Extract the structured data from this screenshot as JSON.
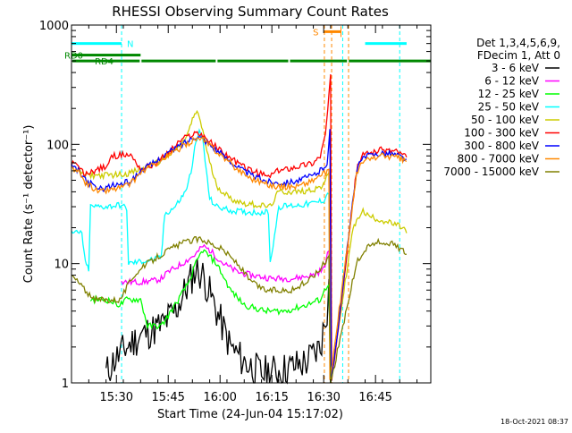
{
  "chart_data": {
    "type": "line",
    "title": "RHESSI Observing Summary Count Rates",
    "xlabel": "Start Time (24-Jun-04 15:17:02)",
    "ylabel": "Count Rate (s⁻¹ detector⁻¹)",
    "x_unit": "minutes after 15:17:02",
    "x_range": [
      0,
      104
    ],
    "x_ticks": [
      {
        "label": "15:30",
        "x": 13
      },
      {
        "label": "15:45",
        "x": 28
      },
      {
        "label": "16:00",
        "x": 43
      },
      {
        "label": "16:15",
        "x": 58
      },
      {
        "label": "16:30",
        "x": 73
      },
      {
        "label": "16:45",
        "x": 88
      }
    ],
    "y_scale": "log",
    "y_range": [
      1,
      1000
    ],
    "y_ticks": [
      {
        "label": "1",
        "value": 1
      },
      {
        "label": "10",
        "value": 10
      },
      {
        "label": "100",
        "value": 100
      },
      {
        "label": "1000",
        "value": 1000
      }
    ],
    "grid": false,
    "legend_position": "right",
    "legend_header": [
      "Det 1,3,4,5,6,9,",
      "FDecim 1, Att 0"
    ],
    "timestamp": "18-Oct-2021 08:37",
    "series": [
      {
        "name": "3 - 6 keV",
        "color": "#000000",
        "jitter": 0.35,
        "points": [
          [
            10,
            1.2
          ],
          [
            12,
            1.5
          ],
          [
            16,
            2
          ],
          [
            20,
            2.5
          ],
          [
            26,
            3
          ],
          [
            30,
            4
          ],
          [
            33,
            6
          ],
          [
            36,
            9
          ],
          [
            38,
            8
          ],
          [
            42,
            4
          ],
          [
            46,
            2
          ],
          [
            50,
            1.5
          ],
          [
            55,
            1.2
          ],
          [
            62,
            1.3
          ],
          [
            68,
            1.5
          ],
          [
            72,
            2
          ],
          [
            74,
            4
          ],
          [
            74.5,
            10
          ],
          [
            75,
            1
          ]
        ]
      },
      {
        "name": "6 - 12 keV",
        "color": "#ff00ff",
        "points": [
          [
            14.5,
            7
          ],
          [
            20,
            7
          ],
          [
            24,
            7.2
          ],
          [
            26,
            7.5
          ],
          [
            28,
            8.5
          ],
          [
            32,
            10
          ],
          [
            36,
            12
          ],
          [
            38,
            14
          ],
          [
            40,
            13
          ],
          [
            44,
            10
          ],
          [
            48,
            8.5
          ],
          [
            52,
            8
          ],
          [
            58,
            7.5
          ],
          [
            64,
            7.5
          ],
          [
            70,
            8
          ],
          [
            73,
            9
          ],
          [
            74.5,
            13
          ],
          [
            75,
            1
          ]
        ]
      },
      {
        "name": "12 - 25 keV",
        "color": "#00ff00",
        "points": [
          [
            5.5,
            5
          ],
          [
            10,
            5
          ],
          [
            14,
            4.5
          ],
          [
            16,
            5
          ],
          [
            20,
            5
          ],
          [
            22,
            3
          ],
          [
            26,
            3
          ],
          [
            30,
            4.5
          ],
          [
            34,
            7
          ],
          [
            36,
            10
          ],
          [
            38,
            13
          ],
          [
            42,
            10
          ],
          [
            46,
            6
          ],
          [
            50,
            4.5
          ],
          [
            56,
            4
          ],
          [
            62,
            4
          ],
          [
            68,
            4.5
          ],
          [
            72,
            5
          ],
          [
            74.5,
            7
          ],
          [
            75,
            1
          ]
        ]
      },
      {
        "name": "25 - 50 keV",
        "color": "#00ffff",
        "points": [
          [
            0,
            18
          ],
          [
            3,
            18
          ],
          [
            4,
            10
          ],
          [
            5,
            9
          ],
          [
            5.5,
            30
          ],
          [
            10,
            30
          ],
          [
            14,
            31
          ],
          [
            16,
            29
          ],
          [
            16.5,
            10
          ],
          [
            25,
            11
          ],
          [
            26,
            11.5
          ],
          [
            27,
            26
          ],
          [
            30,
            30
          ],
          [
            33,
            40
          ],
          [
            35,
            65
          ],
          [
            36,
            110
          ],
          [
            37,
            125
          ],
          [
            38,
            110
          ],
          [
            39,
            60
          ],
          [
            40,
            35
          ],
          [
            42,
            30
          ],
          [
            46,
            28
          ],
          [
            50,
            27
          ],
          [
            54,
            27
          ],
          [
            57,
            27
          ],
          [
            57.5,
            10
          ],
          [
            60,
            30
          ],
          [
            66,
            31
          ],
          [
            70,
            32
          ],
          [
            73,
            34
          ],
          [
            74.5,
            40
          ],
          [
            75,
            1
          ]
        ]
      },
      {
        "name": "50 - 100 keV",
        "color": "#cccc00",
        "points": [
          [
            0,
            62
          ],
          [
            2,
            60
          ],
          [
            4,
            55
          ],
          [
            6,
            55
          ],
          [
            10,
            55
          ],
          [
            14,
            56
          ],
          [
            16,
            57
          ],
          [
            17.5,
            58
          ],
          [
            20,
            62
          ],
          [
            24,
            68
          ],
          [
            28,
            80
          ],
          [
            32,
            100
          ],
          [
            34,
            130
          ],
          [
            35,
            160
          ],
          [
            36,
            185
          ],
          [
            37,
            170
          ],
          [
            38,
            130
          ],
          [
            40,
            70
          ],
          [
            42,
            45
          ],
          [
            46,
            35
          ],
          [
            50,
            32
          ],
          [
            54,
            31
          ],
          [
            57,
            30
          ],
          [
            57.5,
            30
          ],
          [
            60,
            40
          ],
          [
            66,
            40
          ],
          [
            70,
            42
          ],
          [
            73,
            45
          ],
          [
            74.5,
            60
          ],
          [
            75,
            1
          ],
          [
            81.5,
            20
          ],
          [
            82.5,
            22
          ],
          [
            84,
            28
          ],
          [
            86,
            25
          ],
          [
            88,
            24
          ],
          [
            92,
            22
          ],
          [
            96,
            20
          ],
          [
            97,
            18
          ]
        ]
      },
      {
        "name": "100 - 300 keV",
        "color": "#ff0000",
        "points": [
          [
            0,
            70
          ],
          [
            2,
            65
          ],
          [
            4,
            55
          ],
          [
            5,
            58
          ],
          [
            10,
            65
          ],
          [
            12,
            80
          ],
          [
            16,
            82
          ],
          [
            17.5,
            80
          ],
          [
            20,
            62
          ],
          [
            24,
            68
          ],
          [
            28,
            85
          ],
          [
            32,
            110
          ],
          [
            36,
            125
          ],
          [
            38,
            120
          ],
          [
            40,
            105
          ],
          [
            44,
            85
          ],
          [
            48,
            70
          ],
          [
            52,
            60
          ],
          [
            56,
            55
          ],
          [
            57,
            53
          ],
          [
            57.5,
            55
          ],
          [
            60,
            60
          ],
          [
            66,
            66
          ],
          [
            70,
            70
          ],
          [
            72,
            80
          ],
          [
            73.5,
            120
          ],
          [
            74.5,
            250
          ],
          [
            75,
            380
          ],
          [
            75.3,
            1
          ],
          [
            82.5,
            60
          ],
          [
            84,
            80
          ],
          [
            86,
            85
          ],
          [
            90,
            90
          ],
          [
            94,
            88
          ],
          [
            97,
            78
          ]
        ]
      },
      {
        "name": "300 - 800 keV",
        "color": "#0000ff",
        "points": [
          [
            0,
            65
          ],
          [
            2,
            60
          ],
          [
            4,
            50
          ],
          [
            8,
            42
          ],
          [
            12,
            45
          ],
          [
            16,
            48
          ],
          [
            17.5,
            50
          ],
          [
            20,
            60
          ],
          [
            24,
            70
          ],
          [
            28,
            85
          ],
          [
            32,
            100
          ],
          [
            36,
            118
          ],
          [
            38,
            112
          ],
          [
            40,
            100
          ],
          [
            44,
            80
          ],
          [
            48,
            65
          ],
          [
            52,
            55
          ],
          [
            56,
            50
          ],
          [
            58,
            48
          ],
          [
            62,
            48
          ],
          [
            66,
            50
          ],
          [
            70,
            55
          ],
          [
            72,
            60
          ],
          [
            74,
            70
          ],
          [
            74.8,
            130
          ],
          [
            75.2,
            1
          ],
          [
            82.5,
            60
          ],
          [
            84,
            75
          ],
          [
            86,
            80
          ],
          [
            90,
            85
          ],
          [
            94,
            82
          ],
          [
            97,
            75
          ]
        ]
      },
      {
        "name": "800 - 7000 keV",
        "color": "#ff8800",
        "points": [
          [
            0,
            62
          ],
          [
            2,
            58
          ],
          [
            4,
            48
          ],
          [
            8,
            40
          ],
          [
            12,
            42
          ],
          [
            16,
            45
          ],
          [
            17.5,
            48
          ],
          [
            20,
            58
          ],
          [
            24,
            68
          ],
          [
            28,
            80
          ],
          [
            32,
            95
          ],
          [
            36,
            112
          ],
          [
            38,
            108
          ],
          [
            40,
            98
          ],
          [
            44,
            78
          ],
          [
            48,
            62
          ],
          [
            52,
            52
          ],
          [
            56,
            47
          ],
          [
            58,
            45
          ],
          [
            62,
            44
          ],
          [
            66,
            45
          ],
          [
            70,
            50
          ],
          [
            72,
            55
          ],
          [
            74,
            58
          ],
          [
            74.5,
            60
          ],
          [
            74.8,
            1
          ],
          [
            82.5,
            55
          ],
          [
            84,
            70
          ],
          [
            86,
            75
          ],
          [
            90,
            80
          ],
          [
            94,
            78
          ],
          [
            97,
            72
          ]
        ]
      },
      {
        "name": "7000 - 15000 keV",
        "color": "#808000",
        "points": [
          [
            0,
            8
          ],
          [
            2,
            7
          ],
          [
            4,
            6
          ],
          [
            6,
            5
          ],
          [
            10,
            5
          ],
          [
            14,
            5
          ],
          [
            18,
            8
          ],
          [
            22,
            10
          ],
          [
            26,
            12
          ],
          [
            30,
            14
          ],
          [
            34,
            15.5
          ],
          [
            36,
            16
          ],
          [
            38,
            16
          ],
          [
            40,
            15
          ],
          [
            44,
            13
          ],
          [
            48,
            10
          ],
          [
            52,
            7
          ],
          [
            56,
            6
          ],
          [
            60,
            6
          ],
          [
            64,
            6
          ],
          [
            68,
            7
          ],
          [
            72,
            9
          ],
          [
            74,
            11
          ],
          [
            74.5,
            12
          ],
          [
            75,
            1
          ],
          [
            82.5,
            10
          ],
          [
            84,
            12
          ],
          [
            86,
            14
          ],
          [
            88,
            15
          ],
          [
            92,
            15
          ],
          [
            96,
            13
          ],
          [
            97,
            12
          ]
        ]
      }
    ],
    "state_bars": {
      "N": {
        "label": "N",
        "color": "#00ffff",
        "value": 700,
        "segments": [
          [
            0,
            14.5
          ],
          [
            85,
            97
          ]
        ]
      },
      "S": {
        "label": "S",
        "color": "#ff8800",
        "value": 880,
        "segments": [
          [
            73,
            78
          ]
        ]
      },
      "RD0": {
        "label": "RD0",
        "color": "#008800",
        "value": 560,
        "segments": [
          [
            0,
            20
          ]
        ]
      },
      "RD4": {
        "label": "RD4",
        "color": "#008800",
        "value": 500,
        "segments": [
          [
            0,
            20
          ],
          [
            20,
            42
          ],
          [
            42,
            63
          ],
          [
            63,
            80
          ],
          [
            80,
            104
          ]
        ]
      }
    },
    "dashed_verticals": {
      "cyan": [
        14.5,
        78.5,
        95
      ],
      "orange": [
        73.2,
        75.3,
        80.2
      ]
    }
  }
}
